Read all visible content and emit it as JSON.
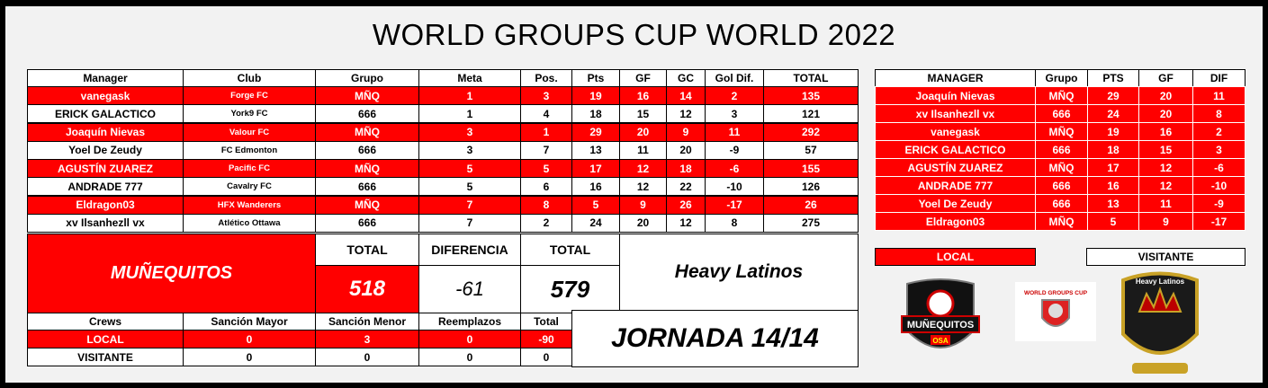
{
  "header": {
    "title": "WORLD GROUPS CUP WORLD 2022"
  },
  "main_table": {
    "columns": [
      "Manager",
      "Club",
      "Grupo",
      "Meta",
      "Pos.",
      "Pts",
      "GF",
      "GC",
      "Gol Dif.",
      "TOTAL"
    ],
    "rows": [
      [
        "vanegask",
        "Forge FC",
        "MÑQ",
        1,
        3,
        19,
        16,
        14,
        2,
        135
      ],
      [
        "ERICK GALACTICO",
        "York9 FC",
        "666",
        1,
        4,
        18,
        15,
        12,
        3,
        121
      ],
      [
        "Joaquín Nievas",
        "Valour FC",
        "MÑQ",
        3,
        1,
        29,
        20,
        9,
        11,
        292
      ],
      [
        "Yoel De Zeudy",
        "FC Edmonton",
        "666",
        3,
        7,
        13,
        11,
        20,
        -9,
        57
      ],
      [
        "AGUSTÍN ZUAREZ",
        "Pacific FC",
        "MÑQ",
        5,
        5,
        17,
        12,
        18,
        -6,
        155
      ],
      [
        "ANDRADE 777",
        "Cavalry FC",
        "666",
        5,
        6,
        16,
        12,
        22,
        -10,
        126
      ],
      [
        "Eldragon03",
        "HFX Wanderers",
        "MÑQ",
        7,
        8,
        5,
        9,
        26,
        -17,
        26
      ],
      [
        "xv Ilsanhezll vx",
        "Atlético Ottawa",
        "666",
        7,
        2,
        24,
        20,
        12,
        8,
        275
      ]
    ]
  },
  "summary": {
    "home_team": "MUÑEQUITOS",
    "home_total_label": "TOTAL",
    "home_total": 518,
    "difference_label": "DIFERENCIA",
    "difference": -61,
    "away_total_label": "TOTAL",
    "away_total": 579,
    "away_team": "Heavy Latinos"
  },
  "crews_table": {
    "columns": [
      "Crews",
      "Sanción Mayor",
      "Sanción Menor",
      "Reemplazos",
      "Total"
    ],
    "rows": [
      [
        "LOCAL",
        0,
        3,
        0,
        -90
      ],
      [
        "VISITANTE",
        0,
        0,
        0,
        0
      ]
    ]
  },
  "round": "JORNADA 14/14",
  "standings": {
    "columns": [
      "MANAGER",
      "Grupo",
      "PTS",
      "GF",
      "DIF"
    ],
    "rows": [
      [
        "Joaquín Nievas",
        "MÑQ",
        29,
        20,
        11
      ],
      [
        "xv Ilsanhezll vx",
        "666",
        24,
        20,
        8
      ],
      [
        "vanegask",
        "MÑQ",
        19,
        16,
        2
      ],
      [
        "ERICK GALACTICO",
        "666",
        18,
        15,
        3
      ],
      [
        "AGUSTÍN ZUAREZ",
        "MÑQ",
        17,
        12,
        -6
      ],
      [
        "ANDRADE 777",
        "666",
        16,
        12,
        -10
      ],
      [
        "Yoel De Zeudy",
        "666",
        13,
        11,
        -9
      ],
      [
        "Eldragon03",
        "MÑQ",
        5,
        9,
        -17
      ]
    ]
  },
  "legend": {
    "local": "LOCAL",
    "away": "VISITANTE"
  },
  "logos": {
    "home_name": "MUÑEQUITOS",
    "home_sub": "OSA",
    "cup": "WORLD GROUPS CUP",
    "away": "Heavy Latinos"
  }
}
